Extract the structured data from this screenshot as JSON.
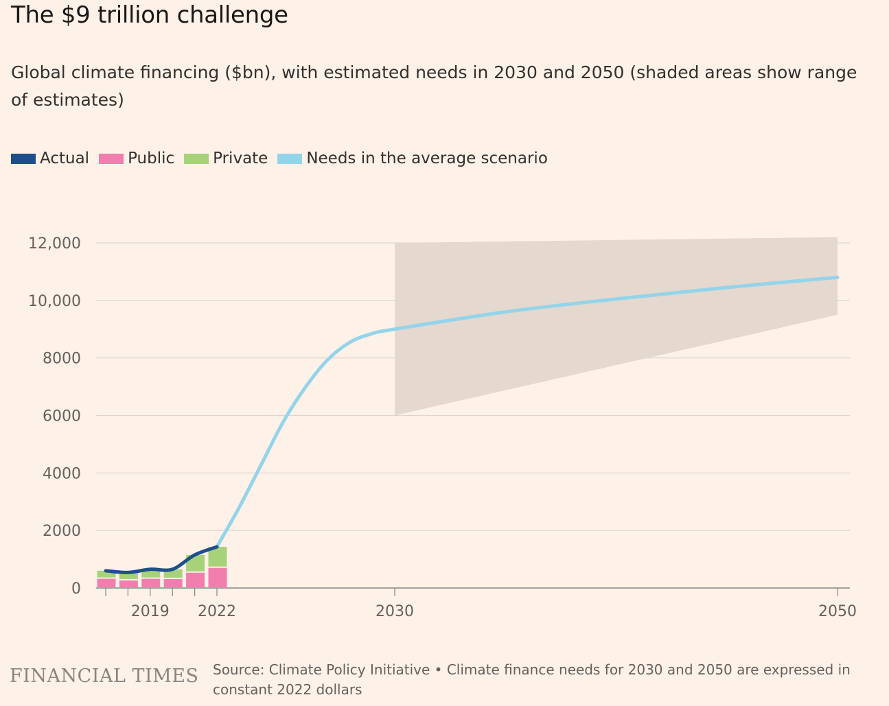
{
  "title": "The $9 trillion challenge",
  "subtitle": "Global climate financing ($bn), with estimated needs in 2030 and 2050 (shaded areas show range of estimates)",
  "legend": [
    {
      "label": "Actual",
      "color": "#1f4e8c"
    },
    {
      "label": "Public",
      "color": "#f27eae"
    },
    {
      "label": "Private",
      "color": "#a8d27a"
    },
    {
      "label": "Needs in the average scenario",
      "color": "#94d4ea"
    }
  ],
  "footer": {
    "brand": "FINANCIAL TIMES",
    "source": "Source: Climate Policy Initiative • Climate finance needs for 2030 and 2050 are expressed in constant 2022 dollars"
  },
  "chart_data": {
    "type": "bar",
    "ylim": [
      0,
      12000
    ],
    "y_ticks": [
      {
        "value": 0,
        "label": "0"
      },
      {
        "value": 2000,
        "label": "2000"
      },
      {
        "value": 4000,
        "label": "4000"
      },
      {
        "value": 6000,
        "label": "6000"
      },
      {
        "value": 8000,
        "label": "8000"
      },
      {
        "value": 10000,
        "label": "10,000"
      },
      {
        "value": 12000,
        "label": "12,000"
      }
    ],
    "x_ticks": [
      {
        "year": 2019,
        "label": "2019"
      },
      {
        "year": 2022,
        "label": "2022"
      },
      {
        "year": 2030,
        "label": "2030"
      },
      {
        "year": 2050,
        "label": "2050"
      }
    ],
    "grid": true,
    "bars": {
      "years": [
        2017,
        2018,
        2019,
        2020,
        2021,
        2022
      ],
      "public": [
        320,
        260,
        320,
        310,
        530,
        700
      ],
      "private": [
        280,
        280,
        330,
        340,
        620,
        730
      ]
    },
    "actual_line": {
      "years": [
        2017,
        2018,
        2019,
        2020,
        2021,
        2022
      ],
      "values": [
        600,
        540,
        650,
        650,
        1150,
        1430
      ]
    },
    "needs_line": {
      "years": [
        2022,
        2023,
        2024,
        2025,
        2026,
        2027,
        2028,
        2029,
        2030,
        2035,
        2040,
        2045,
        2050
      ],
      "values": [
        1430,
        2800,
        4300,
        5800,
        7000,
        7950,
        8550,
        8850,
        9000,
        9600,
        10050,
        10450,
        10800
      ]
    },
    "needs_range": {
      "years": [
        2030,
        2050
      ],
      "low": [
        6000,
        9500
      ],
      "high": [
        12000,
        12200
      ]
    }
  }
}
